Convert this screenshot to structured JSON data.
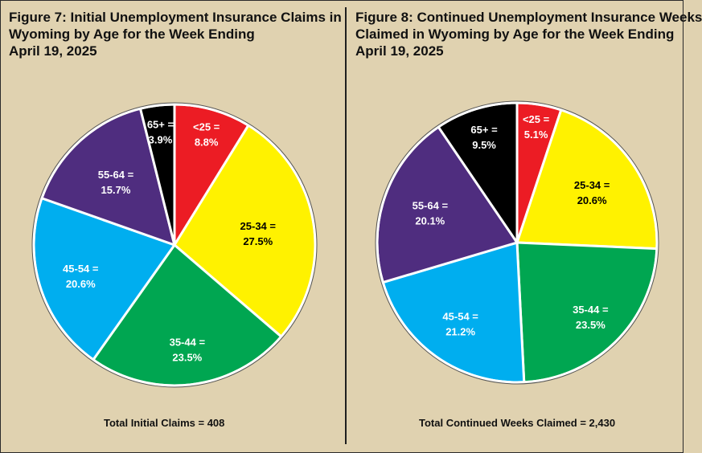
{
  "charts": [
    {
      "title_lines": [
        "Figure 7: Initial Unemployment Insurance Claims in",
        "Wyoming by Age for the Week Ending",
        "April 19, 2025"
      ],
      "total": "Total Initial Claims = 408"
    },
    {
      "title_lines": [
        "Figure 8: Continued Unemployment Insurance Weeks",
        "Claimed in Wyoming by Age for the Week Ending",
        "April 19, 2025"
      ],
      "total": "Total Continued Weeks Claimed = 2,430"
    }
  ],
  "chart_data": [
    {
      "type": "pie",
      "title": "Figure 7: Initial Unemployment Insurance Claims in Wyoming by Age for the Week Ending April 19, 2025",
      "categories": [
        "<25",
        "25-34",
        "35-44",
        "45-54",
        "55-64",
        "65+"
      ],
      "values": [
        8.8,
        27.5,
        23.5,
        20.6,
        15.7,
        3.9
      ],
      "labels": [
        [
          "<25 =",
          "8.8%"
        ],
        [
          "25-34 =",
          "27.5%"
        ],
        [
          "35-44 =",
          "23.5%"
        ],
        [
          "45-54 =",
          "20.6%"
        ],
        [
          "55-64 =",
          "15.7%"
        ],
        [
          "65+ =",
          "3.9%"
        ]
      ],
      "colors": [
        "#ec1c24",
        "#fff200",
        "#00a651",
        "#00aeef",
        "#4f2d7f",
        "#000000"
      ],
      "label_colors": [
        "#ffffff",
        "#000000",
        "#ffffff",
        "#ffffff",
        "#ffffff",
        "#ffffff"
      ],
      "annotation": "Total Initial Claims = 408"
    },
    {
      "type": "pie",
      "title": "Figure 8: Continued Unemployment Insurance Weeks Claimed in Wyoming by Age for the Week Ending April 19, 2025",
      "categories": [
        "<25",
        "25-34",
        "35-44",
        "45-54",
        "55-64",
        "65+"
      ],
      "values": [
        5.1,
        20.6,
        23.5,
        21.2,
        20.1,
        9.5
      ],
      "labels": [
        [
          "<25 =",
          "5.1%"
        ],
        [
          "25-34 =",
          "20.6%"
        ],
        [
          "35-44 =",
          "23.5%"
        ],
        [
          "45-54 =",
          "21.2%"
        ],
        [
          "55-64 =",
          "20.1%"
        ],
        [
          "65+ =",
          "9.5%"
        ]
      ],
      "colors": [
        "#ec1c24",
        "#fff200",
        "#00a651",
        "#00aeef",
        "#4f2d7f",
        "#000000"
      ],
      "label_colors": [
        "#ffffff",
        "#000000",
        "#ffffff",
        "#ffffff",
        "#ffffff",
        "#ffffff"
      ],
      "annotation": "Total Continued Weeks Claimed = 2,430"
    }
  ]
}
